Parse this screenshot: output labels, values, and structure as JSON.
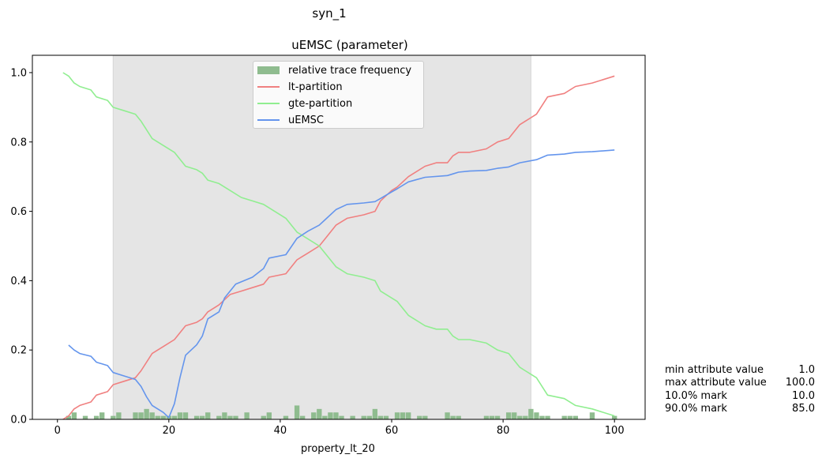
{
  "figure": {
    "suptitle": "syn_1"
  },
  "stats": [
    {
      "label": "min attribute value",
      "value": "1.0"
    },
    {
      "label": "max attribute value",
      "value": "100.0"
    },
    {
      "label": "10.0% mark",
      "value": "10.0"
    },
    {
      "label": "90.0% mark",
      "value": "85.0"
    }
  ],
  "chart_data": {
    "type": "line",
    "title": "uEMSC (parameter)",
    "xlabel": "property_lt_20",
    "ylabel": "",
    "xlim": [
      -4.5,
      105.5
    ],
    "ylim": [
      0.0,
      1.05
    ],
    "xticks": [
      0,
      20,
      40,
      60,
      80,
      100
    ],
    "yticks": [
      0.0,
      0.2,
      0.4,
      0.6,
      0.8,
      1.0
    ],
    "ytick_labels": [
      "0.0",
      "0.2",
      "0.4",
      "0.6",
      "0.8",
      "1.0"
    ],
    "grid": false,
    "legend_position": "top-center",
    "shaded_region": {
      "from": 10,
      "to": 85,
      "color": "#e5e5e5"
    },
    "histogram": {
      "name": "relative trace frequency",
      "color": "#8fbc8f",
      "x": [
        2,
        3,
        5,
        7,
        8,
        10,
        11,
        14,
        15,
        16,
        17,
        18,
        19,
        20,
        21,
        22,
        23,
        25,
        26,
        27,
        29,
        30,
        31,
        32,
        34,
        37,
        38,
        41,
        43,
        44,
        46,
        47,
        48,
        49,
        50,
        51,
        53,
        55,
        56,
        57,
        58,
        59,
        61,
        62,
        63,
        65,
        66,
        70,
        71,
        72,
        77,
        78,
        79,
        81,
        82,
        83,
        84,
        85,
        86,
        87,
        88,
        91,
        92,
        93,
        96,
        100
      ],
      "values": [
        0.01,
        0.02,
        0.01,
        0.01,
        0.02,
        0.01,
        0.02,
        0.02,
        0.02,
        0.03,
        0.02,
        0.01,
        0.01,
        0.01,
        0.01,
        0.02,
        0.02,
        0.01,
        0.01,
        0.02,
        0.01,
        0.02,
        0.01,
        0.01,
        0.02,
        0.01,
        0.02,
        0.01,
        0.04,
        0.01,
        0.02,
        0.03,
        0.01,
        0.02,
        0.02,
        0.01,
        0.01,
        0.01,
        0.01,
        0.03,
        0.01,
        0.01,
        0.02,
        0.02,
        0.02,
        0.01,
        0.01,
        0.02,
        0.01,
        0.01,
        0.01,
        0.01,
        0.01,
        0.02,
        0.02,
        0.01,
        0.01,
        0.03,
        0.02,
        0.01,
        0.01,
        0.01,
        0.01,
        0.01,
        0.02,
        0.01
      ]
    },
    "series": [
      {
        "name": "lt-partition",
        "color": "#f08080",
        "x": [
          1,
          2,
          3,
          4,
          6,
          7,
          9,
          10,
          12,
          14,
          15,
          17,
          19,
          21,
          23,
          25,
          26,
          27,
          29,
          31,
          33,
          35,
          37,
          38,
          41,
          43,
          45,
          47,
          48,
          50,
          52,
          55,
          57,
          58,
          60,
          61,
          63,
          64,
          66,
          68,
          70,
          71,
          72,
          74,
          77,
          79,
          81,
          83,
          84,
          85,
          86,
          88,
          91,
          93,
          96,
          100
        ],
        "values": [
          0.0,
          0.01,
          0.03,
          0.04,
          0.05,
          0.07,
          0.08,
          0.1,
          0.11,
          0.12,
          0.14,
          0.19,
          0.21,
          0.23,
          0.27,
          0.28,
          0.29,
          0.31,
          0.33,
          0.36,
          0.37,
          0.38,
          0.39,
          0.41,
          0.42,
          0.46,
          0.48,
          0.5,
          0.52,
          0.56,
          0.58,
          0.59,
          0.6,
          0.63,
          0.66,
          0.67,
          0.7,
          0.71,
          0.73,
          0.74,
          0.74,
          0.76,
          0.77,
          0.77,
          0.78,
          0.8,
          0.81,
          0.85,
          0.86,
          0.87,
          0.88,
          0.93,
          0.94,
          0.96,
          0.97,
          0.99
        ]
      },
      {
        "name": "gte-partition",
        "color": "#90ee90",
        "x": [
          1,
          2,
          3,
          4,
          6,
          7,
          9,
          10,
          12,
          14,
          15,
          17,
          19,
          21,
          23,
          25,
          26,
          27,
          29,
          31,
          33,
          35,
          37,
          38,
          41,
          43,
          45,
          47,
          48,
          50,
          52,
          55,
          57,
          58,
          60,
          61,
          63,
          64,
          66,
          68,
          70,
          71,
          72,
          74,
          77,
          79,
          81,
          83,
          84,
          85,
          86,
          88,
          91,
          93,
          96,
          100
        ],
        "values": [
          1.0,
          0.99,
          0.97,
          0.96,
          0.95,
          0.93,
          0.92,
          0.9,
          0.89,
          0.88,
          0.86,
          0.81,
          0.79,
          0.77,
          0.73,
          0.72,
          0.71,
          0.69,
          0.68,
          0.66,
          0.64,
          0.63,
          0.62,
          0.61,
          0.58,
          0.54,
          0.52,
          0.5,
          0.48,
          0.44,
          0.42,
          0.41,
          0.4,
          0.37,
          0.35,
          0.34,
          0.3,
          0.29,
          0.27,
          0.26,
          0.26,
          0.24,
          0.23,
          0.23,
          0.22,
          0.2,
          0.19,
          0.15,
          0.14,
          0.13,
          0.12,
          0.07,
          0.06,
          0.04,
          0.03,
          0.01
        ]
      },
      {
        "name": "uEMSC",
        "color": "#6495ed",
        "x": [
          2,
          3,
          4,
          6,
          7,
          9,
          10,
          12,
          14,
          15,
          16,
          17,
          19,
          20,
          21,
          22,
          23,
          25,
          26,
          27,
          29,
          30,
          32,
          35,
          37,
          38,
          41,
          43,
          45,
          47,
          48,
          50,
          52,
          55,
          57,
          58,
          60,
          61,
          63,
          66,
          70,
          71,
          72,
          74,
          77,
          79,
          81,
          83,
          86,
          88,
          91,
          93,
          96,
          100
        ],
        "values": [
          0.214,
          0.2,
          0.19,
          0.182,
          0.165,
          0.155,
          0.135,
          0.125,
          0.115,
          0.095,
          0.065,
          0.04,
          0.02,
          0.005,
          0.045,
          0.12,
          0.185,
          0.215,
          0.24,
          0.29,
          0.31,
          0.35,
          0.39,
          0.41,
          0.435,
          0.465,
          0.475,
          0.522,
          0.543,
          0.56,
          0.575,
          0.605,
          0.62,
          0.624,
          0.628,
          0.637,
          0.656,
          0.665,
          0.685,
          0.698,
          0.703,
          0.708,
          0.713,
          0.716,
          0.718,
          0.724,
          0.728,
          0.74,
          0.749,
          0.762,
          0.765,
          0.77,
          0.772,
          0.777
        ]
      }
    ]
  }
}
